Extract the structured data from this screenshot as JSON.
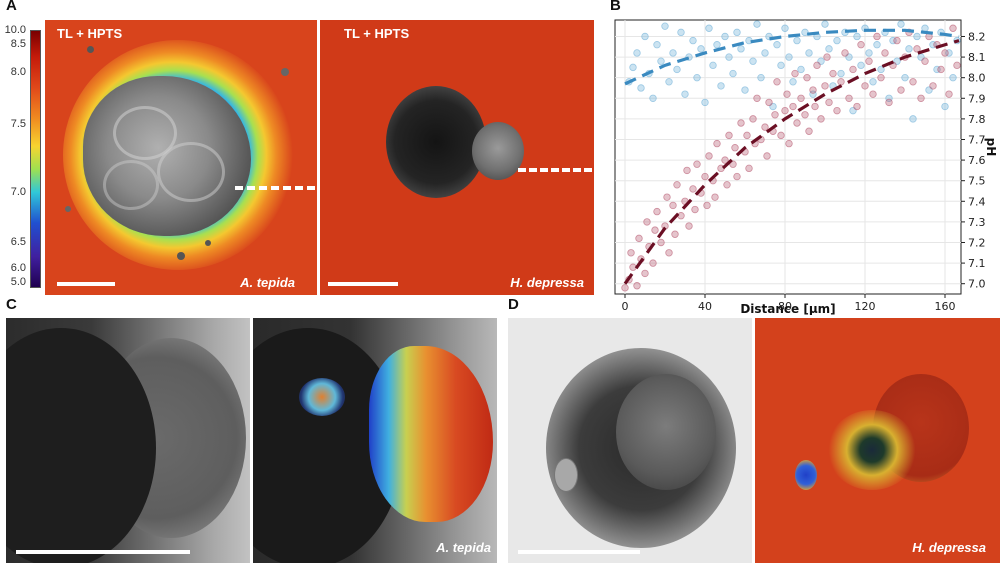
{
  "panel_labels": {
    "a": "A",
    "b": "B",
    "c": "C",
    "d": "D"
  },
  "panel_a": {
    "left_title": "TL + HPTS",
    "right_title": "TL + HPTS",
    "left_species": "A. tepida",
    "right_species": "H. depressa",
    "colorbar_ticks": [
      "10.0",
      "8.5",
      "8.0",
      "7.5",
      "7.0",
      "6.5",
      "6.0",
      "5.0"
    ]
  },
  "panel_c": {
    "species": "A. tepida"
  },
  "panel_d": {
    "species": "H. depressa"
  },
  "chart_data": {
    "type": "scatter",
    "xlabel": "Distance [μm]",
    "ylabel": "pH",
    "xlim": [
      -5,
      168
    ],
    "ylim": [
      6.95,
      8.28
    ],
    "x_ticks": [
      0,
      40,
      80,
      120,
      160
    ],
    "y_ticks": [
      7.0,
      7.1,
      7.2,
      7.3,
      7.4,
      7.5,
      7.6,
      7.7,
      7.8,
      7.9,
      8.0,
      8.1,
      8.2
    ],
    "y_axis_side": "right",
    "grid": true,
    "legend": "none",
    "series": [
      {
        "color": "#6baed6",
        "fit_color": "#3a8ac0",
        "fit_x": [
          0,
          20,
          40,
          60,
          80,
          100,
          120,
          140,
          160,
          167
        ],
        "fit_y": [
          7.97,
          8.06,
          8.12,
          8.17,
          8.2,
          8.22,
          8.23,
          8.23,
          8.21,
          8.2
        ],
        "points": [
          [
            2,
            7.98
          ],
          [
            4,
            8.05
          ],
          [
            6,
            8.12
          ],
          [
            8,
            7.95
          ],
          [
            10,
            8.2
          ],
          [
            12,
            8.02
          ],
          [
            14,
            7.9
          ],
          [
            16,
            8.16
          ],
          [
            18,
            8.08
          ],
          [
            20,
            8.25
          ],
          [
            22,
            7.98
          ],
          [
            24,
            8.12
          ],
          [
            26,
            8.04
          ],
          [
            28,
            8.22
          ],
          [
            30,
            7.92
          ],
          [
            32,
            8.1
          ],
          [
            34,
            8.18
          ],
          [
            36,
            8.0
          ],
          [
            38,
            8.14
          ],
          [
            40,
            7.88
          ],
          [
            42,
            8.24
          ],
          [
            44,
            8.06
          ],
          [
            46,
            8.16
          ],
          [
            48,
            7.96
          ],
          [
            50,
            8.2
          ],
          [
            52,
            8.1
          ],
          [
            54,
            8.02
          ],
          [
            56,
            8.22
          ],
          [
            58,
            8.14
          ],
          [
            60,
            7.94
          ],
          [
            62,
            8.18
          ],
          [
            64,
            8.08
          ],
          [
            66,
            8.26
          ],
          [
            68,
            8.0
          ],
          [
            70,
            8.12
          ],
          [
            72,
            8.2
          ],
          [
            74,
            7.86
          ],
          [
            76,
            8.16
          ],
          [
            78,
            8.06
          ],
          [
            80,
            8.24
          ],
          [
            82,
            8.1
          ],
          [
            84,
            7.98
          ],
          [
            86,
            8.18
          ],
          [
            88,
            8.04
          ],
          [
            90,
            8.22
          ],
          [
            92,
            8.12
          ],
          [
            94,
            7.92
          ],
          [
            96,
            8.2
          ],
          [
            98,
            8.08
          ],
          [
            100,
            8.26
          ],
          [
            102,
            8.14
          ],
          [
            104,
            7.96
          ],
          [
            106,
            8.18
          ],
          [
            108,
            8.02
          ],
          [
            110,
            8.22
          ],
          [
            112,
            8.1
          ],
          [
            114,
            7.84
          ],
          [
            116,
            8.2
          ],
          [
            118,
            8.06
          ],
          [
            120,
            8.24
          ],
          [
            122,
            8.12
          ],
          [
            124,
            7.98
          ],
          [
            126,
            8.16
          ],
          [
            128,
            8.04
          ],
          [
            130,
            8.22
          ],
          [
            132,
            7.9
          ],
          [
            134,
            8.18
          ],
          [
            136,
            8.08
          ],
          [
            138,
            8.26
          ],
          [
            140,
            8.0
          ],
          [
            142,
            8.14
          ],
          [
            144,
            7.8
          ],
          [
            146,
            8.2
          ],
          [
            148,
            8.1
          ],
          [
            150,
            8.24
          ],
          [
            152,
            7.94
          ],
          [
            154,
            8.16
          ],
          [
            156,
            8.04
          ],
          [
            158,
            8.22
          ],
          [
            160,
            7.86
          ],
          [
            162,
            8.12
          ],
          [
            164,
            8.0
          ],
          [
            166,
            8.18
          ]
        ]
      },
      {
        "color": "#b5566e",
        "fit_color": "#6b0f24",
        "fit_x": [
          0,
          20,
          40,
          60,
          80,
          100,
          120,
          140,
          160,
          167
        ],
        "fit_y": [
          7.0,
          7.27,
          7.48,
          7.66,
          7.8,
          7.92,
          8.02,
          8.1,
          8.16,
          8.18
        ],
        "points": [
          [
            0,
            6.98
          ],
          [
            2,
            7.02
          ],
          [
            3,
            7.15
          ],
          [
            4,
            7.08
          ],
          [
            6,
            6.99
          ],
          [
            7,
            7.22
          ],
          [
            8,
            7.12
          ],
          [
            10,
            7.05
          ],
          [
            11,
            7.3
          ],
          [
            12,
            7.18
          ],
          [
            14,
            7.1
          ],
          [
            15,
            7.26
          ],
          [
            16,
            7.35
          ],
          [
            18,
            7.2
          ],
          [
            20,
            7.28
          ],
          [
            21,
            7.42
          ],
          [
            22,
            7.15
          ],
          [
            24,
            7.38
          ],
          [
            25,
            7.24
          ],
          [
            26,
            7.48
          ],
          [
            28,
            7.33
          ],
          [
            30,
            7.4
          ],
          [
            31,
            7.55
          ],
          [
            32,
            7.28
          ],
          [
            34,
            7.46
          ],
          [
            35,
            7.36
          ],
          [
            36,
            7.58
          ],
          [
            38,
            7.44
          ],
          [
            40,
            7.52
          ],
          [
            41,
            7.38
          ],
          [
            42,
            7.62
          ],
          [
            44,
            7.5
          ],
          [
            45,
            7.42
          ],
          [
            46,
            7.68
          ],
          [
            48,
            7.56
          ],
          [
            50,
            7.6
          ],
          [
            51,
            7.48
          ],
          [
            52,
            7.72
          ],
          [
            54,
            7.58
          ],
          [
            55,
            7.66
          ],
          [
            56,
            7.52
          ],
          [
            58,
            7.78
          ],
          [
            60,
            7.64
          ],
          [
            61,
            7.72
          ],
          [
            62,
            7.56
          ],
          [
            64,
            7.8
          ],
          [
            65,
            7.68
          ],
          [
            66,
            7.9
          ],
          [
            68,
            7.7
          ],
          [
            70,
            7.76
          ],
          [
            71,
            7.62
          ],
          [
            72,
            7.88
          ],
          [
            74,
            7.74
          ],
          [
            75,
            7.82
          ],
          [
            76,
            7.98
          ],
          [
            78,
            7.72
          ],
          [
            80,
            7.84
          ],
          [
            81,
            7.92
          ],
          [
            82,
            7.68
          ],
          [
            84,
            7.86
          ],
          [
            85,
            8.02
          ],
          [
            86,
            7.78
          ],
          [
            88,
            7.9
          ],
          [
            90,
            7.82
          ],
          [
            91,
            8.0
          ],
          [
            92,
            7.74
          ],
          [
            94,
            7.94
          ],
          [
            95,
            7.86
          ],
          [
            96,
            8.06
          ],
          [
            98,
            7.8
          ],
          [
            100,
            7.96
          ],
          [
            101,
            8.1
          ],
          [
            102,
            7.88
          ],
          [
            104,
            8.02
          ],
          [
            106,
            7.84
          ],
          [
            108,
            7.98
          ],
          [
            110,
            8.12
          ],
          [
            112,
            7.9
          ],
          [
            114,
            8.04
          ],
          [
            116,
            7.86
          ],
          [
            118,
            8.16
          ],
          [
            120,
            7.96
          ],
          [
            122,
            8.08
          ],
          [
            124,
            7.92
          ],
          [
            126,
            8.2
          ],
          [
            128,
            8.0
          ],
          [
            130,
            8.12
          ],
          [
            132,
            7.88
          ],
          [
            134,
            8.06
          ],
          [
            136,
            8.18
          ],
          [
            138,
            7.94
          ],
          [
            140,
            8.1
          ],
          [
            142,
            8.22
          ],
          [
            144,
            7.98
          ],
          [
            146,
            8.14
          ],
          [
            148,
            7.9
          ],
          [
            150,
            8.08
          ],
          [
            152,
            8.2
          ],
          [
            154,
            7.96
          ],
          [
            156,
            8.16
          ],
          [
            158,
            8.04
          ],
          [
            160,
            8.12
          ],
          [
            162,
            7.92
          ],
          [
            164,
            8.24
          ],
          [
            166,
            8.06
          ]
        ]
      }
    ]
  }
}
